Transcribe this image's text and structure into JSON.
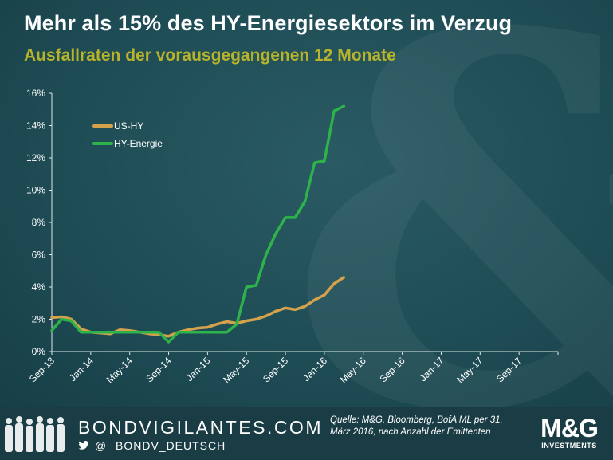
{
  "title": "Mehr als 15% des HY-Energiesektors im Verzug",
  "subtitle": "Ausfallraten der vorausgegangenen 12 Monate",
  "footer": {
    "brand": "BONDVIGILANTES.COM",
    "twitter_at": "@",
    "handle": "BONDV_DEUTSCH",
    "source": "Quelle: M&G, Bloomberg, BofA ML per 31. März 2016, nach Anzahl der Emittenten",
    "logo_text": "M&G",
    "logo_sub": "INVESTMENTS",
    "twitter_icon": "twitter-bird-icon"
  },
  "colors": {
    "us_hy": "#d4a24c",
    "hy_energie": "#2db34a",
    "subtitle": "#b7b32a"
  },
  "chart_data": {
    "type": "line",
    "xlabel": "",
    "ylabel": "",
    "x_ticks": [
      "Sep-13",
      "Jan-14",
      "May-14",
      "Sep-14",
      "Jan-15",
      "May-15",
      "Sep-15",
      "Jan-16",
      "May-16",
      "Sep-16",
      "Jan-17",
      "May-17",
      "Sep-17"
    ],
    "y_ticks": [
      "0%",
      "2%",
      "4%",
      "6%",
      "8%",
      "10%",
      "12%",
      "14%",
      "16%"
    ],
    "ylim": [
      0,
      16
    ],
    "legend_position": "top-left",
    "grid": false,
    "series": [
      {
        "name": "US-HY",
        "x": [
          "2013-09",
          "2013-10",
          "2013-11",
          "2013-12",
          "2014-01",
          "2014-02",
          "2014-03",
          "2014-04",
          "2014-05",
          "2014-06",
          "2014-07",
          "2014-08",
          "2014-09",
          "2014-10",
          "2014-11",
          "2014-12",
          "2015-01",
          "2015-02",
          "2015-03",
          "2015-04",
          "2015-05",
          "2015-06",
          "2015-07",
          "2015-08",
          "2015-09",
          "2015-10",
          "2015-11",
          "2015-12",
          "2016-01",
          "2016-02",
          "2016-03"
        ],
        "values": [
          2.1,
          2.15,
          2.0,
          1.4,
          1.2,
          1.15,
          1.1,
          1.35,
          1.3,
          1.2,
          1.1,
          1.05,
          0.95,
          1.2,
          1.35,
          1.45,
          1.5,
          1.7,
          1.85,
          1.75,
          1.9,
          2.0,
          2.2,
          2.5,
          2.7,
          2.6,
          2.8,
          3.2,
          3.5,
          4.2,
          4.6
        ]
      },
      {
        "name": "HY-Energie",
        "x": [
          "2013-09",
          "2013-10",
          "2013-11",
          "2013-12",
          "2014-01",
          "2014-02",
          "2014-03",
          "2014-04",
          "2014-05",
          "2014-06",
          "2014-07",
          "2014-08",
          "2014-09",
          "2014-10",
          "2014-11",
          "2014-12",
          "2015-01",
          "2015-02",
          "2015-03",
          "2015-04",
          "2015-05",
          "2015-06",
          "2015-07",
          "2015-08",
          "2015-09",
          "2015-10",
          "2015-11",
          "2015-12",
          "2016-01",
          "2016-02",
          "2016-03"
        ],
        "values": [
          1.3,
          2.0,
          1.9,
          1.2,
          1.2,
          1.2,
          1.2,
          1.2,
          1.2,
          1.2,
          1.2,
          1.2,
          0.6,
          1.2,
          1.2,
          1.2,
          1.2,
          1.2,
          1.2,
          1.7,
          4.0,
          4.1,
          6.0,
          7.3,
          8.3,
          8.3,
          9.3,
          11.7,
          11.8,
          14.9,
          15.2
        ]
      }
    ]
  }
}
